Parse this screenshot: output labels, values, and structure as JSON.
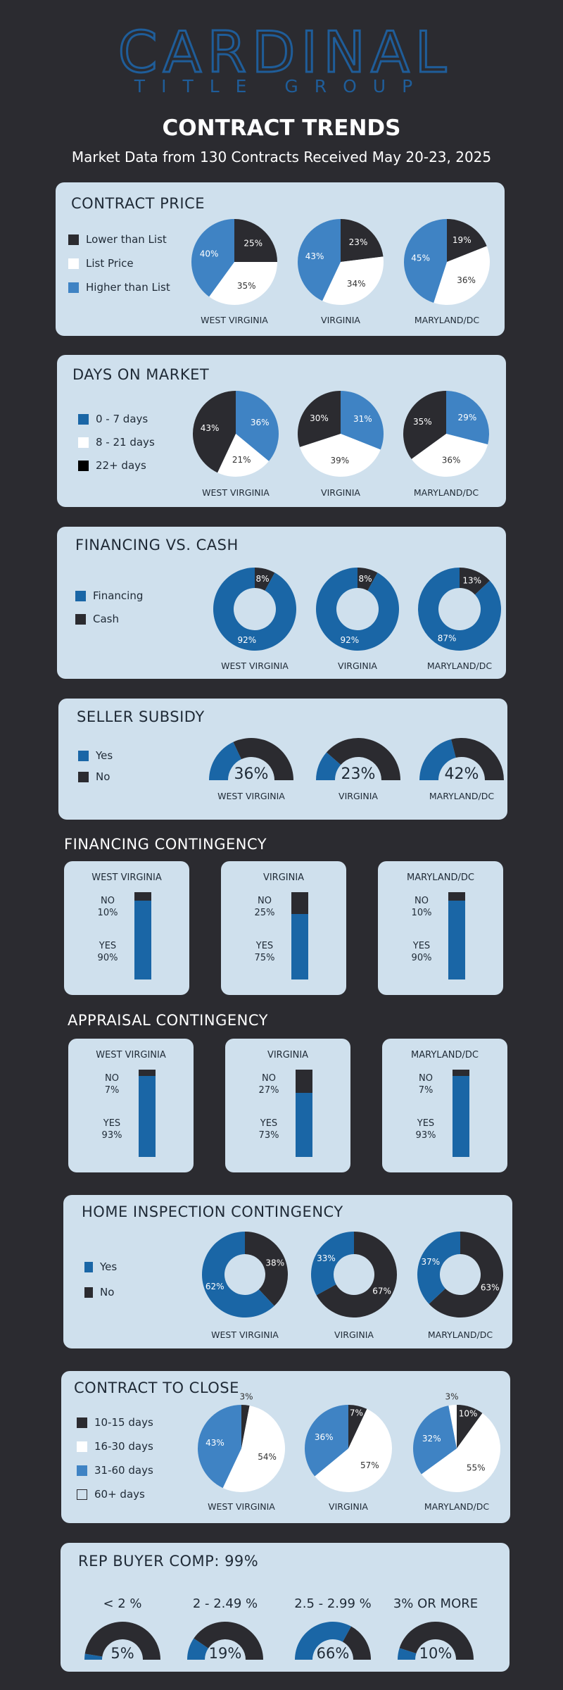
{
  "header": {
    "logo_main": "CARDINAL",
    "logo_sub": "TITLE GROUP",
    "title": "CONTRACT TRENDS",
    "subtitle": "Market Data from 130 Contracts Received May 20-23, 2025"
  },
  "colors": {
    "background": "#2b2b30",
    "panel": "#cfe0ed",
    "dark": "#2b2b30",
    "white": "#ffffff",
    "light_blue": "#3f83c4",
    "dark_blue": "#1a66a6",
    "logo": "#1f5d99"
  },
  "states": [
    "WEST VIRGINIA",
    "VIRGINIA",
    "MARYLAND/DC"
  ],
  "contract_price": {
    "title": "CONTRACT PRICE",
    "legend": [
      "Lower than List",
      "List Price",
      "Higher than List"
    ]
  },
  "days_on_market": {
    "title": "DAYS ON MARKET",
    "legend": [
      "0 - 7 days",
      "8 - 21 days",
      "22+ days"
    ]
  },
  "financing_cash": {
    "title": "FINANCING VS. CASH",
    "legend": [
      "Financing",
      "Cash"
    ]
  },
  "seller_subsidy": {
    "title": "SELLER SUBSIDY",
    "legend": [
      "Yes",
      "No"
    ]
  },
  "financing_contingency": {
    "title": "FINANCING CONTINGENCY",
    "no_label": "NO",
    "yes_label": "YES"
  },
  "appraisal_contingency": {
    "title": "APPRAISAL CONTINGENCY",
    "no_label": "NO",
    "yes_label": "YES"
  },
  "home_inspection": {
    "title": "HOME INSPECTION CONTINGENCY",
    "legend": [
      "Yes",
      "No"
    ]
  },
  "contract_to_close": {
    "title": "CONTRACT TO CLOSE",
    "legend": [
      "10-15 days",
      "16-30 days",
      "31-60 days",
      "60+ days"
    ]
  },
  "rep_buyer_comp": {
    "title": "REP BUYER COMP: 99%"
  },
  "chart_data": [
    {
      "id": "contract_price",
      "type": "pie",
      "categories": [
        "WEST VIRGINIA",
        "VIRGINIA",
        "MARYLAND/DC"
      ],
      "series": [
        {
          "name": "Lower than List",
          "values": [
            25,
            23,
            19
          ]
        },
        {
          "name": "List Price",
          "values": [
            35,
            34,
            36
          ]
        },
        {
          "name": "Higher than List",
          "values": [
            40,
            43,
            45
          ]
        }
      ]
    },
    {
      "id": "days_on_market",
      "type": "pie",
      "categories": [
        "WEST VIRGINIA",
        "VIRGINIA",
        "MARYLAND/DC"
      ],
      "series": [
        {
          "name": "0 - 7 days",
          "values": [
            36,
            31,
            29
          ]
        },
        {
          "name": "8 - 21 days",
          "values": [
            21,
            39,
            36
          ]
        },
        {
          "name": "22+ days",
          "values": [
            43,
            30,
            35
          ]
        }
      ]
    },
    {
      "id": "financing_cash",
      "type": "pie",
      "categories": [
        "WEST VIRGINIA",
        "VIRGINIA",
        "MARYLAND/DC"
      ],
      "series": [
        {
          "name": "Cash",
          "values": [
            8,
            8,
            13
          ]
        },
        {
          "name": "Financing",
          "values": [
            92,
            92,
            87
          ]
        }
      ]
    },
    {
      "id": "seller_subsidy",
      "type": "pie",
      "categories": [
        "WEST VIRGINIA",
        "VIRGINIA",
        "MARYLAND/DC"
      ],
      "series": [
        {
          "name": "Yes",
          "values": [
            36,
            23,
            42
          ]
        }
      ]
    },
    {
      "id": "financing_contingency",
      "type": "bar",
      "categories": [
        "WEST VIRGINIA",
        "VIRGINIA",
        "MARYLAND/DC"
      ],
      "series": [
        {
          "name": "NO",
          "values": [
            10,
            25,
            10
          ]
        },
        {
          "name": "YES",
          "values": [
            90,
            75,
            90
          ]
        }
      ]
    },
    {
      "id": "appraisal_contingency",
      "type": "bar",
      "categories": [
        "WEST VIRGINIA",
        "VIRGINIA",
        "MARYLAND/DC"
      ],
      "series": [
        {
          "name": "NO",
          "values": [
            7,
            27,
            7
          ]
        },
        {
          "name": "YES",
          "values": [
            93,
            73,
            93
          ]
        }
      ]
    },
    {
      "id": "home_inspection",
      "type": "pie",
      "categories": [
        "WEST VIRGINIA",
        "VIRGINIA",
        "MARYLAND/DC"
      ],
      "series": [
        {
          "name": "Yes",
          "values": [
            62,
            33,
            37
          ]
        },
        {
          "name": "No",
          "values": [
            38,
            67,
            63
          ]
        }
      ]
    },
    {
      "id": "contract_to_close",
      "type": "pie",
      "categories": [
        "WEST VIRGINIA",
        "VIRGINIA",
        "MARYLAND/DC"
      ],
      "series": [
        {
          "name": "10-15 days",
          "values": [
            3,
            7,
            10
          ]
        },
        {
          "name": "16-30 days",
          "values": [
            54,
            57,
            55
          ]
        },
        {
          "name": "31-60 days",
          "values": [
            43,
            36,
            32
          ]
        },
        {
          "name": "60+ days",
          "values": [
            0,
            0,
            3
          ]
        }
      ]
    },
    {
      "id": "rep_buyer_comp",
      "type": "pie",
      "categories": [
        "< 2 %",
        "2 - 2.49 %",
        "2.5 - 2.99 %",
        "3% OR MORE"
      ],
      "values": [
        5,
        19,
        66,
        10
      ]
    }
  ]
}
